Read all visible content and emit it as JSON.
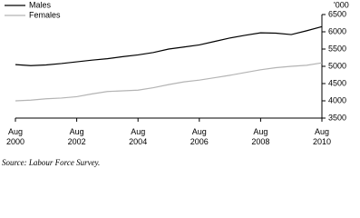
{
  "chart_data": {
    "type": "line",
    "y_label": "'000",
    "source": "Source: Labour Force Survey.",
    "x": [
      2000,
      2000.5,
      2001,
      2001.5,
      2002,
      2002.5,
      2003,
      2003.5,
      2004,
      2004.5,
      2005,
      2005.5,
      2006,
      2006.5,
      2007,
      2007.5,
      2008,
      2008.5,
      2009,
      2009.5,
      2010
    ],
    "series": [
      {
        "name": "Males",
        "color": "#000000",
        "values": [
          5050,
          5020,
          5040,
          5080,
          5130,
          5180,
          5220,
          5280,
          5330,
          5400,
          5500,
          5560,
          5620,
          5720,
          5820,
          5900,
          5970,
          5960,
          5920,
          6030,
          6150
        ]
      },
      {
        "name": "Females",
        "color": "#b4b4b4",
        "values": [
          4000,
          4020,
          4060,
          4080,
          4120,
          4200,
          4270,
          4290,
          4310,
          4380,
          4470,
          4550,
          4600,
          4670,
          4740,
          4820,
          4900,
          4960,
          5000,
          5030,
          5100
        ]
      }
    ],
    "xlim": [
      2000,
      2010
    ],
    "xticks": [
      {
        "value": 2000,
        "label": "Aug 2000"
      },
      {
        "value": 2002,
        "label": "Aug 2002"
      },
      {
        "value": 2004,
        "label": "Aug 2004"
      },
      {
        "value": 2006,
        "label": "Aug 2006"
      },
      {
        "value": 2008,
        "label": "Aug 2008"
      },
      {
        "value": 2010,
        "label": "Aug 2010"
      }
    ],
    "ylim": [
      3500,
      6500
    ],
    "yticks": [
      3500,
      4000,
      4500,
      5000,
      5500,
      6000,
      6500
    ],
    "legend": "top-left"
  }
}
